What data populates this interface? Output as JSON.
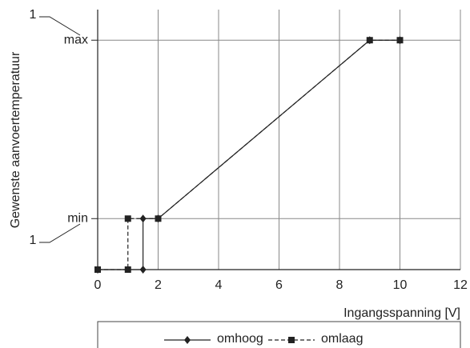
{
  "chart_data": {
    "type": "line",
    "xlabel": "Ingangsspanning [V]",
    "ylabel": "Gewenste aanvoertemperatuur",
    "annotations": [
      "1",
      "1"
    ],
    "xlim": [
      0,
      12
    ],
    "xticks": [
      0,
      2,
      4,
      6,
      8,
      10,
      12
    ],
    "ylim": [
      0,
      5.1
    ],
    "yticks": [
      {
        "value": 1,
        "label": "min"
      },
      {
        "value": 4.5,
        "label": "max"
      }
    ],
    "grid": true,
    "legend": "bottom",
    "series": [
      {
        "name": "omhoog",
        "color": "#222222",
        "dashed": false,
        "marker": "diamond",
        "x": [
          0,
          1.5,
          1.5,
          2,
          9,
          10
        ],
        "values": [
          0,
          0,
          1,
          1,
          4.5,
          4.5
        ]
      },
      {
        "name": "omlaag",
        "color": "#222222",
        "dashed": true,
        "marker": "square",
        "x": [
          0,
          1,
          1,
          2,
          9,
          10
        ],
        "values": [
          0,
          0,
          1,
          1,
          4.5,
          4.5
        ]
      }
    ]
  }
}
